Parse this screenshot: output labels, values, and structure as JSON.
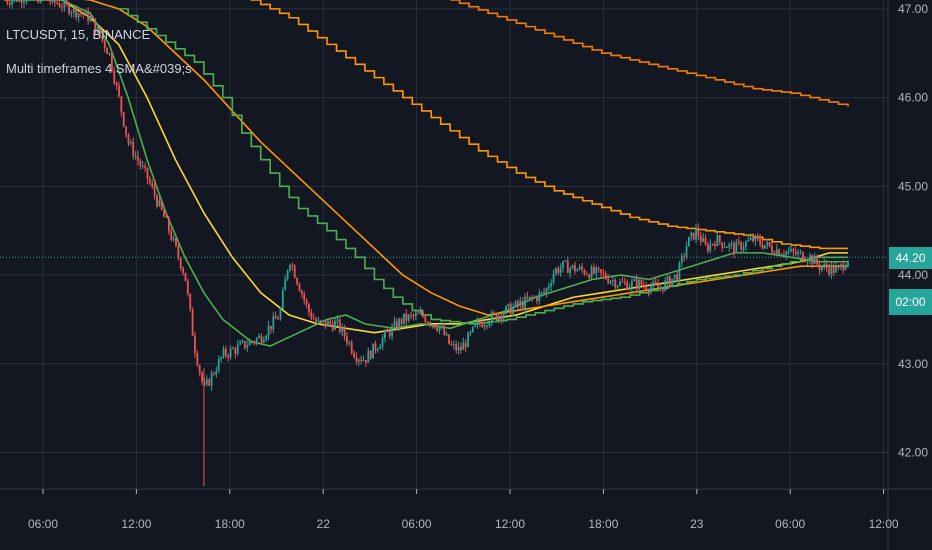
{
  "legend": {
    "symbol": "LTCUSDT, 15, BINANCE",
    "indicator": "Multi timeframes 4 SMA&#039;s"
  },
  "price_tags": {
    "last_price": "44.20",
    "countdown": "02:00"
  },
  "colors": {
    "background": "#131722",
    "grid": "#2a2e39",
    "axis_text": "#b2b5be",
    "candle_up": "#26a69a",
    "candle_down": "#ef5350",
    "last_price_line": "#26a69a",
    "sma_green": "#4caf50",
    "sma_yellow": "#fdd835",
    "sma_orange": "#ff9800",
    "sma_orange_far": "#f57c00"
  },
  "chart_data": {
    "type": "candlestick",
    "interval": "15",
    "x_ticks": [
      "06:00",
      "12:00",
      "18:00",
      "22",
      "06:00",
      "12:00",
      "18:00",
      "23",
      "06:00",
      "12:00"
    ],
    "y_ticks": [
      "42.00",
      "43.00",
      "44.00",
      "45.00",
      "46.00",
      "47.00"
    ],
    "x_range": [
      0,
      92
    ],
    "ylim": [
      41.6,
      47.1
    ],
    "last_price": 44.2,
    "candle_anchors": [
      [
        0,
        47.1
      ],
      [
        3,
        47.15
      ],
      [
        6,
        47.05
      ],
      [
        9,
        46.9
      ],
      [
        11,
        46.5
      ],
      [
        13,
        45.5
      ],
      [
        15,
        45.1
      ],
      [
        17,
        44.6
      ],
      [
        19,
        44.0
      ],
      [
        20,
        43.2
      ],
      [
        21,
        42.7
      ],
      [
        22,
        42.9
      ],
      [
        23,
        43.1
      ],
      [
        25,
        43.2
      ],
      [
        27,
        43.3
      ],
      [
        29,
        43.55
      ],
      [
        30,
        44.2
      ],
      [
        31,
        43.9
      ],
      [
        32,
        43.6
      ],
      [
        33,
        43.45
      ],
      [
        35,
        43.45
      ],
      [
        36,
        43.3
      ],
      [
        37,
        43.1
      ],
      [
        38,
        43.05
      ],
      [
        40,
        43.3
      ],
      [
        42,
        43.5
      ],
      [
        44,
        43.55
      ],
      [
        46,
        43.4
      ],
      [
        47,
        43.2
      ],
      [
        48,
        43.15
      ],
      [
        50,
        43.45
      ],
      [
        52,
        43.55
      ],
      [
        55,
        43.7
      ],
      [
        57,
        43.8
      ],
      [
        58,
        44.05
      ],
      [
        59,
        44.1
      ],
      [
        61,
        44.05
      ],
      [
        63,
        44.0
      ],
      [
        65,
        43.9
      ],
      [
        67,
        43.9
      ],
      [
        69,
        43.85
      ],
      [
        71,
        44.0
      ],
      [
        72,
        44.35
      ],
      [
        73,
        44.5
      ],
      [
        74,
        44.3
      ],
      [
        75,
        44.4
      ],
      [
        77,
        44.3
      ],
      [
        79,
        44.4
      ],
      [
        81,
        44.3
      ],
      [
        83,
        44.25
      ],
      [
        85,
        44.2
      ],
      [
        86,
        44.1
      ],
      [
        88,
        44.05
      ],
      [
        89,
        44.2
      ]
    ],
    "series": [
      {
        "type": "line",
        "color": "#fdd835",
        "points": [
          [
            0,
            47.15
          ],
          [
            6,
            47.1
          ],
          [
            9,
            46.9
          ],
          [
            12,
            46.6
          ],
          [
            15,
            46.0
          ],
          [
            18,
            45.3
          ],
          [
            21,
            44.7
          ],
          [
            24,
            44.2
          ],
          [
            27,
            43.8
          ],
          [
            30,
            43.55
          ],
          [
            33,
            43.45
          ],
          [
            36,
            43.4
          ],
          [
            39,
            43.35
          ],
          [
            42,
            43.4
          ],
          [
            45,
            43.45
          ],
          [
            48,
            43.45
          ],
          [
            51,
            43.5
          ],
          [
            54,
            43.55
          ],
          [
            57,
            43.65
          ],
          [
            60,
            43.75
          ],
          [
            63,
            43.8
          ],
          [
            66,
            43.85
          ],
          [
            69,
            43.9
          ],
          [
            72,
            43.95
          ],
          [
            75,
            44.0
          ],
          [
            78,
            44.05
          ],
          [
            81,
            44.1
          ],
          [
            84,
            44.15
          ],
          [
            87,
            44.25
          ],
          [
            89,
            44.25
          ]
        ]
      },
      {
        "type": "line",
        "color": "#4caf50",
        "points": [
          [
            0,
            47.1
          ],
          [
            6,
            47.1
          ],
          [
            9,
            46.95
          ],
          [
            11,
            46.6
          ],
          [
            13,
            46.0
          ],
          [
            15,
            45.3
          ],
          [
            17,
            44.7
          ],
          [
            19,
            44.2
          ],
          [
            21,
            43.8
          ],
          [
            23,
            43.5
          ],
          [
            26,
            43.25
          ],
          [
            28,
            43.2
          ],
          [
            30,
            43.3
          ],
          [
            32,
            43.4
          ],
          [
            34,
            43.5
          ],
          [
            36,
            43.55
          ],
          [
            38,
            43.45
          ],
          [
            41,
            43.4
          ],
          [
            44,
            43.45
          ],
          [
            47,
            43.4
          ],
          [
            50,
            43.5
          ],
          [
            53,
            43.6
          ],
          [
            56,
            43.75
          ],
          [
            59,
            43.85
          ],
          [
            62,
            43.95
          ],
          [
            65,
            44.0
          ],
          [
            68,
            43.95
          ],
          [
            71,
            44.05
          ],
          [
            74,
            44.15
          ],
          [
            77,
            44.25
          ],
          [
            80,
            44.25
          ],
          [
            83,
            44.2
          ],
          [
            86,
            44.15
          ],
          [
            89,
            44.15
          ]
        ]
      },
      {
        "type": "line",
        "color": "#ff9800",
        "points": [
          [
            0,
            47.2
          ],
          [
            9,
            47.1
          ],
          [
            12,
            47.0
          ],
          [
            15,
            46.8
          ],
          [
            18,
            46.5
          ],
          [
            21,
            46.2
          ],
          [
            24,
            45.85
          ],
          [
            27,
            45.5
          ],
          [
            30,
            45.2
          ],
          [
            33,
            44.9
          ],
          [
            36,
            44.6
          ],
          [
            39,
            44.3
          ],
          [
            42,
            44.0
          ],
          [
            45,
            43.8
          ],
          [
            48,
            43.65
          ],
          [
            51,
            43.55
          ],
          [
            54,
            43.6
          ],
          [
            57,
            43.65
          ],
          [
            60,
            43.7
          ],
          [
            63,
            43.75
          ],
          [
            66,
            43.8
          ],
          [
            69,
            43.85
          ],
          [
            72,
            43.9
          ],
          [
            75,
            43.95
          ],
          [
            78,
            44.0
          ],
          [
            81,
            44.05
          ],
          [
            84,
            44.1
          ],
          [
            87,
            44.1
          ],
          [
            89,
            44.1
          ]
        ]
      },
      {
        "type": "step",
        "color": "#4caf50",
        "points": [
          [
            12,
            47.0
          ],
          [
            16,
            46.7
          ],
          [
            20,
            46.4
          ],
          [
            23,
            46.0
          ],
          [
            25,
            45.6
          ],
          [
            27,
            45.3
          ],
          [
            29,
            45.0
          ],
          [
            31,
            44.75
          ],
          [
            34,
            44.5
          ],
          [
            37,
            44.2
          ],
          [
            39,
            43.95
          ],
          [
            41,
            43.75
          ],
          [
            43,
            43.6
          ],
          [
            45,
            43.5
          ],
          [
            49,
            43.45
          ],
          [
            53,
            43.5
          ],
          [
            57,
            43.6
          ],
          [
            61,
            43.7
          ],
          [
            65,
            43.75
          ],
          [
            69,
            43.85
          ],
          [
            73,
            43.95
          ],
          [
            77,
            44.0
          ],
          [
            81,
            44.1
          ],
          [
            85,
            44.2
          ],
          [
            89,
            44.2
          ]
        ]
      },
      {
        "type": "step",
        "color": "#ff9800",
        "points": [
          [
            24,
            47.2
          ],
          [
            26,
            47.1
          ],
          [
            30,
            46.9
          ],
          [
            34,
            46.6
          ],
          [
            38,
            46.3
          ],
          [
            42,
            46.0
          ],
          [
            46,
            45.7
          ],
          [
            50,
            45.4
          ],
          [
            54,
            45.15
          ],
          [
            58,
            44.95
          ],
          [
            62,
            44.8
          ],
          [
            66,
            44.65
          ],
          [
            70,
            44.55
          ],
          [
            74,
            44.5
          ],
          [
            78,
            44.45
          ],
          [
            82,
            44.35
          ],
          [
            86,
            44.3
          ],
          [
            89,
            44.3
          ]
        ]
      },
      {
        "type": "step",
        "color": "#f57c00",
        "points": [
          [
            47,
            47.1
          ],
          [
            51,
            46.95
          ],
          [
            55,
            46.8
          ],
          [
            59,
            46.65
          ],
          [
            63,
            46.5
          ],
          [
            67,
            46.4
          ],
          [
            71,
            46.3
          ],
          [
            75,
            46.2
          ],
          [
            79,
            46.1
          ],
          [
            83,
            46.05
          ],
          [
            87,
            45.95
          ],
          [
            89,
            45.9
          ]
        ]
      }
    ]
  }
}
